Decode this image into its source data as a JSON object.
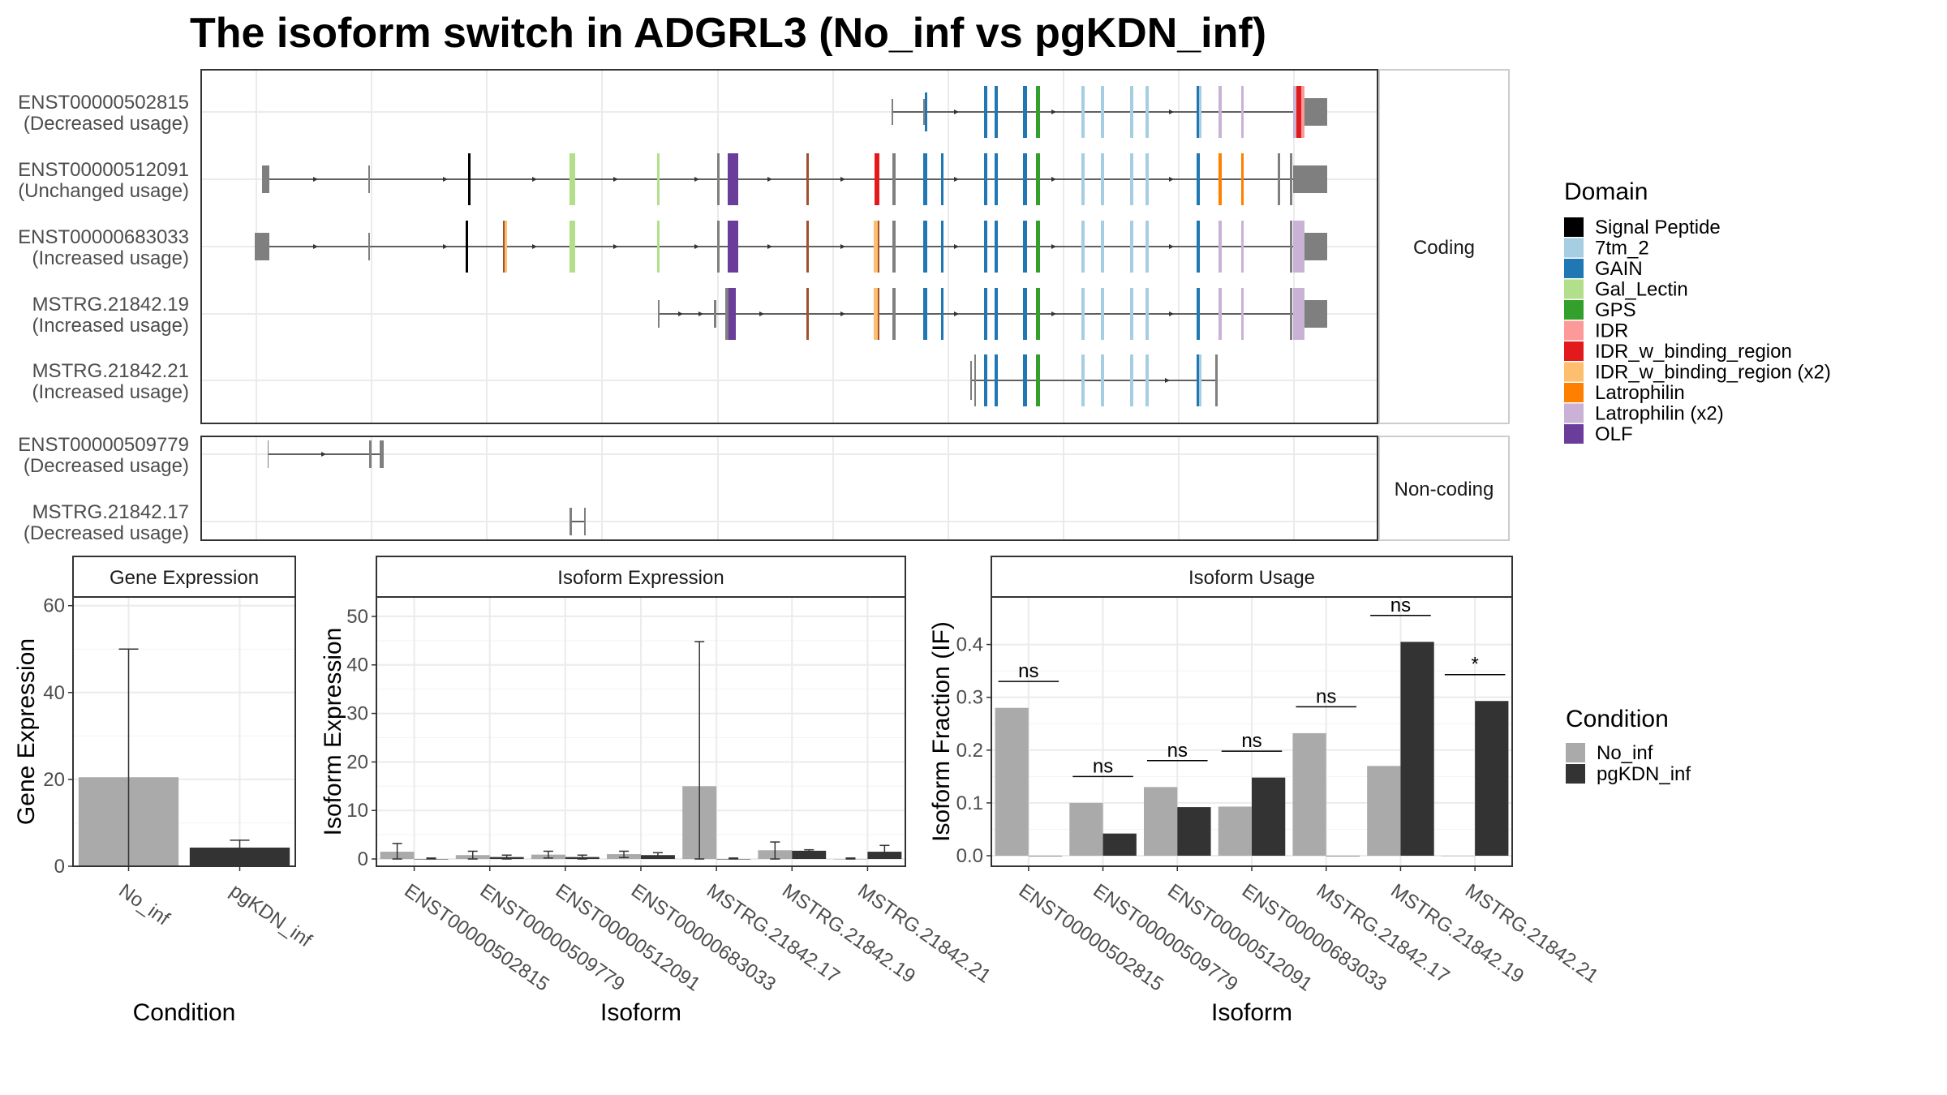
{
  "title": "The isoform switch in ADGRL3 (No_inf vs pgKDN_inf)",
  "chart_data": [
    {
      "type": "gene-structure",
      "panels": [
        {
          "strip": "Coding",
          "rows": [
            {
              "label": "ENST00000502815",
              "sub": "(Decreased usage)"
            },
            {
              "label": "ENST00000512091",
              "sub": "(Unchanged usage)"
            },
            {
              "label": "ENST00000683033",
              "sub": "(Increased usage)"
            },
            {
              "label": "MSTRG.21842.19",
              "sub": "(Increased usage)"
            },
            {
              "label": "MSTRG.21842.21",
              "sub": "(Increased usage)"
            }
          ]
        },
        {
          "strip": "Non-coding",
          "rows": [
            {
              "label": "ENST00000509779",
              "sub": "(Decreased usage)"
            },
            {
              "label": "MSTRG.21842.17",
              "sub": "(Decreased usage)"
            }
          ]
        }
      ],
      "legend_title": "Domain",
      "legend_position": "right",
      "domains": [
        {
          "name": "Signal Peptide",
          "color": "#000000"
        },
        {
          "name": "7tm_2",
          "color": "#a6cee3"
        },
        {
          "name": "GAIN",
          "color": "#1f78b4"
        },
        {
          "name": "Gal_Lectin",
          "color": "#b2df8a"
        },
        {
          "name": "GPS",
          "color": "#33a02c"
        },
        {
          "name": "IDR",
          "color": "#fb9a99"
        },
        {
          "name": "IDR_w_binding_region",
          "color": "#e31a1c"
        },
        {
          "name": "IDR_w_binding_region (x2)",
          "color": "#fdbf6f"
        },
        {
          "name": "Latrophilin",
          "color": "#ff7f00"
        },
        {
          "name": "Latrophilin (x2)",
          "color": "#cab2d6"
        },
        {
          "name": "OLF",
          "color": "#6a3d9a"
        }
      ]
    },
    {
      "type": "bar",
      "strip": "Gene Expression",
      "xlabel": "Condition",
      "ylabel": "Gene Expression",
      "categories": [
        "No_inf",
        "pgKDN_inf"
      ],
      "values": [
        20.5,
        4.3
      ],
      "error_low": [
        0,
        2.8
      ],
      "error_high": [
        50,
        6.0
      ],
      "bar_colors": [
        "#aaaaaa",
        "#333333"
      ],
      "ylim": [
        0,
        62
      ],
      "yticks": [
        0,
        20,
        40,
        60
      ],
      "grid": true
    },
    {
      "type": "bar",
      "strip": "Isoform Expression",
      "xlabel": "Isoform",
      "ylabel": "Isoform Expression",
      "categories": [
        "ENST00000502815",
        "ENST00000509779",
        "ENST00000512091",
        "ENST00000683033",
        "MSTRG.21842.17",
        "MSTRG.21842.19",
        "MSTRG.21842.21"
      ],
      "series": [
        {
          "name": "No_inf",
          "values": [
            1.5,
            0.8,
            0.9,
            1.0,
            15.0,
            1.8,
            0.0
          ],
          "error_low": [
            0,
            0,
            0.2,
            0.3,
            0,
            0,
            0
          ],
          "error_high": [
            3.2,
            1.6,
            1.6,
            1.6,
            44.8,
            3.5,
            0.2
          ]
        },
        {
          "name": "pgKDN_inf",
          "values": [
            0.0,
            0.4,
            0.4,
            0.8,
            0.0,
            1.7,
            1.5
          ],
          "error_low": [
            0,
            0,
            0,
            0.2,
            0,
            1.4,
            0.3
          ],
          "error_high": [
            0.2,
            0.8,
            0.8,
            1.3,
            0.2,
            1.9,
            2.8
          ]
        }
      ],
      "ylim": [
        -1.5,
        54
      ],
      "yticks": [
        0,
        10,
        20,
        30,
        40,
        50
      ],
      "grid": true
    },
    {
      "type": "bar",
      "strip": "Isoform Usage",
      "xlabel": "Isoform",
      "ylabel": "Isoform Fraction (IF)",
      "categories": [
        "ENST00000502815",
        "ENST00000509779",
        "ENST00000512091",
        "ENST00000683033",
        "MSTRG.21842.17",
        "MSTRG.21842.19",
        "MSTRG.21842.21"
      ],
      "series": [
        {
          "name": "No_inf",
          "values": [
            0.28,
            0.1,
            0.13,
            0.093,
            0.232,
            0.17,
            0.0
          ]
        },
        {
          "name": "pgKDN_inf",
          "values": [
            0.0,
            0.042,
            0.092,
            0.148,
            0.0,
            0.405,
            0.293
          ]
        }
      ],
      "significance": [
        "ns",
        "ns",
        "ns",
        "ns",
        "ns",
        "ns",
        "*"
      ],
      "ylim": [
        -0.02,
        0.49
      ],
      "yticks": [
        0.0,
        0.1,
        0.2,
        0.3,
        0.4
      ],
      "grid": true,
      "legend_title": "Condition",
      "legend_position": "right",
      "legend": [
        {
          "name": "No_inf",
          "color": "#aaaaaa"
        },
        {
          "name": "pgKDN_inf",
          "color": "#333333"
        }
      ]
    }
  ]
}
